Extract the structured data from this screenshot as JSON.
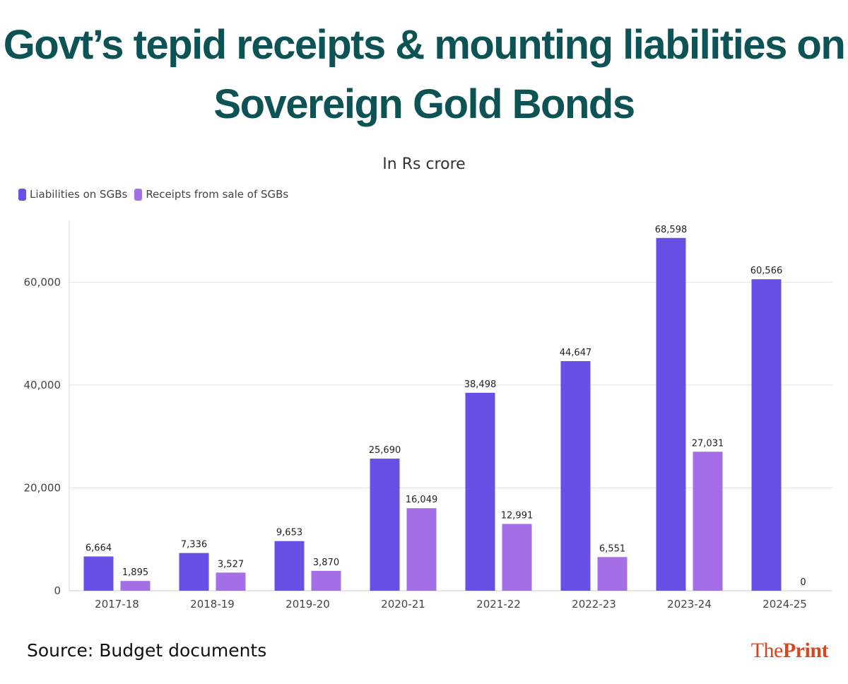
{
  "header": {
    "title_line1": "Govt’s tepid receipts & mounting liabilities on",
    "title_line2": "Sovereign Gold Bonds",
    "subtitle": "In Rs crore"
  },
  "footer": {
    "source": "Source: Budget documents",
    "brand_the": "The",
    "brand_print": "Print"
  },
  "colors": {
    "liabilities": "#6650e6",
    "receipts": "#a46fe6",
    "title": "#0d5255",
    "brand": "#d9451c"
  },
  "chart_data": {
    "type": "bar",
    "title": "Govt’s tepid receipts & mounting liabilities on Sovereign Gold Bonds",
    "subtitle": "In Rs crore",
    "categories": [
      "2017-18",
      "2018-19",
      "2019-20",
      "2020-21",
      "2021-22",
      "2022-23",
      "2023-24",
      "2024-25"
    ],
    "series": [
      {
        "name": "Liabilities on SGBs",
        "values": [
          6664,
          7336,
          9653,
          25690,
          38498,
          44647,
          68598,
          60566
        ],
        "labels": [
          "6,664",
          "7,336",
          "9,653",
          "25,690",
          "38,498",
          "44,647",
          "68,598",
          "60,566"
        ]
      },
      {
        "name": "Receipts from sale of SGBs",
        "values": [
          1895,
          3527,
          3870,
          16049,
          12991,
          6551,
          27031,
          0
        ],
        "labels": [
          "1,895",
          "3,527",
          "3,870",
          "16,049",
          "12,991",
          "6,551",
          "27,031",
          "0"
        ]
      }
    ],
    "yticks": [
      0,
      20000,
      40000,
      60000
    ],
    "ytick_labels": [
      "0",
      "20,000",
      "40,000",
      "60,000"
    ],
    "ylim": [
      0,
      72000
    ],
    "grid": true,
    "legend": "top-left"
  }
}
